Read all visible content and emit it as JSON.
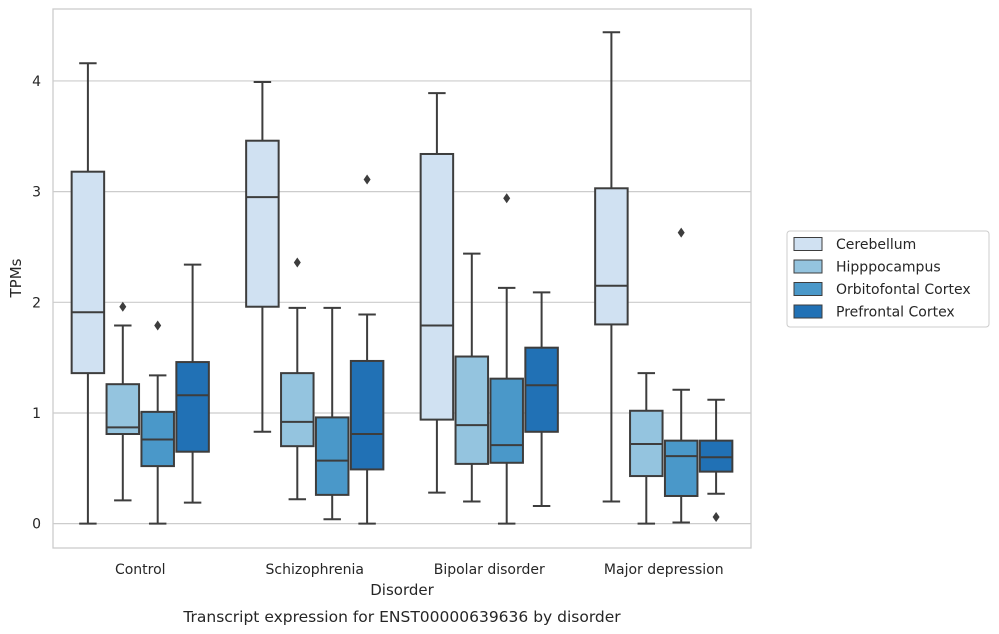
{
  "chart_data": {
    "type": "box",
    "title": "",
    "caption": "Transcript expression for ENST00000639636 by disorder",
    "xlabel": "Disorder",
    "ylabel": "TPMs",
    "ylim": [
      -0.22,
      4.65
    ],
    "yticks": [
      0,
      1,
      2,
      3,
      4
    ],
    "grid": "horizontal",
    "legend_position": "right",
    "categories": [
      "Control",
      "Schizophrenia",
      "Bipolar disorder",
      "Major depression"
    ],
    "series": [
      {
        "name": "Cerebellum",
        "color": "#d0e1f2",
        "boxes": [
          {
            "whislo": 0.0,
            "q1": 1.36,
            "med": 1.91,
            "q3": 3.18,
            "whishi": 4.16,
            "fliers": []
          },
          {
            "whislo": 0.83,
            "q1": 1.96,
            "med": 2.95,
            "q3": 3.46,
            "whishi": 3.99,
            "fliers": []
          },
          {
            "whislo": 0.28,
            "q1": 0.94,
            "med": 1.79,
            "q3": 3.34,
            "whishi": 3.89,
            "fliers": []
          },
          {
            "whislo": 0.2,
            "q1": 1.8,
            "med": 2.15,
            "q3": 3.03,
            "whishi": 4.44,
            "fliers": []
          }
        ]
      },
      {
        "name": "Hipppocampus",
        "color": "#94c4df",
        "boxes": [
          {
            "whislo": 0.21,
            "q1": 0.81,
            "med": 0.87,
            "q3": 1.26,
            "whishi": 1.79,
            "fliers": [
              1.96
            ]
          },
          {
            "whislo": 0.22,
            "q1": 0.7,
            "med": 0.92,
            "q3": 1.36,
            "whishi": 1.95,
            "fliers": [
              2.36
            ]
          },
          {
            "whislo": 0.2,
            "q1": 0.54,
            "med": 0.89,
            "q3": 1.51,
            "whishi": 2.44,
            "fliers": []
          },
          {
            "whislo": 0.0,
            "q1": 0.43,
            "med": 0.72,
            "q3": 1.02,
            "whishi": 1.36,
            "fliers": []
          }
        ]
      },
      {
        "name": "Orbitofontal Cortex",
        "color": "#4a98c9",
        "boxes": [
          {
            "whislo": 0.0,
            "q1": 0.52,
            "med": 0.76,
            "q3": 1.01,
            "whishi": 1.34,
            "fliers": [
              1.79
            ]
          },
          {
            "whislo": 0.04,
            "q1": 0.26,
            "med": 0.57,
            "q3": 0.96,
            "whishi": 1.95,
            "fliers": []
          },
          {
            "whislo": 0.0,
            "q1": 0.55,
            "med": 0.71,
            "q3": 1.31,
            "whishi": 2.13,
            "fliers": [
              2.94
            ]
          },
          {
            "whislo": 0.01,
            "q1": 0.25,
            "med": 0.61,
            "q3": 0.75,
            "whishi": 1.21,
            "fliers": [
              2.63
            ]
          }
        ]
      },
      {
        "name": "Prefrontal Cortex",
        "color": "#2171b5",
        "boxes": [
          {
            "whislo": 0.19,
            "q1": 0.65,
            "med": 1.16,
            "q3": 1.46,
            "whishi": 2.34,
            "fliers": []
          },
          {
            "whislo": 0.0,
            "q1": 0.49,
            "med": 0.81,
            "q3": 1.47,
            "whishi": 1.89,
            "fliers": [
              3.11
            ]
          },
          {
            "whislo": 0.16,
            "q1": 0.83,
            "med": 1.25,
            "q3": 1.59,
            "whishi": 2.09,
            "fliers": []
          },
          {
            "whislo": 0.27,
            "q1": 0.47,
            "med": 0.6,
            "q3": 0.75,
            "whishi": 1.12,
            "fliers": [
              0.06
            ]
          }
        ]
      }
    ]
  }
}
